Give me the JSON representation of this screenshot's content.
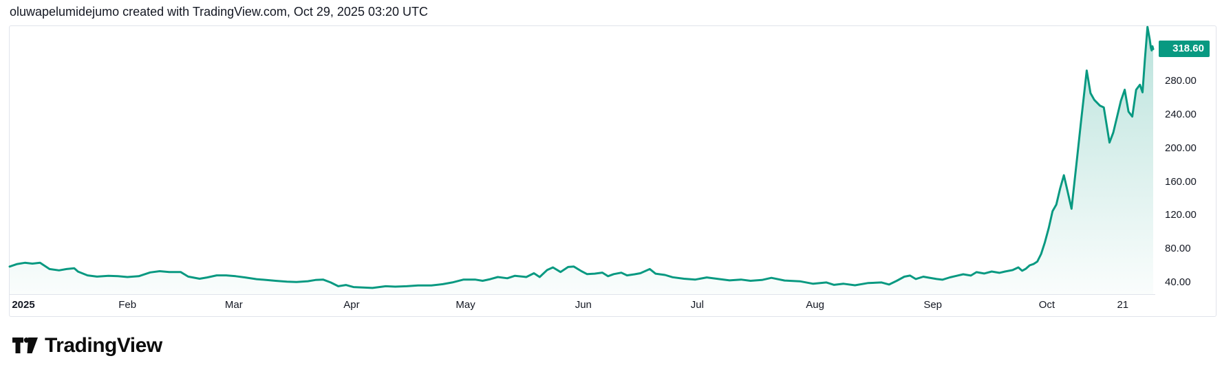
{
  "header": {
    "attribution": "oluwapelumidejumo created with TradingView.com, Oct 29, 2025 03:20 UTC"
  },
  "footer": {
    "logo_text": "TradingView"
  },
  "colors": {
    "accent": "#089981",
    "fill_top_opacity": 0.28,
    "fill_bottom_opacity": 0.02,
    "border": "#e0e3eb",
    "text": "#131722",
    "badge_text": "#ffffff",
    "background": "#ffffff"
  },
  "price_scale": {
    "last_price_label": "318.60",
    "labels": [
      {
        "text": "280.00",
        "value": 280
      },
      {
        "text": "240.00",
        "value": 240
      },
      {
        "text": "200.00",
        "value": 200
      },
      {
        "text": "160.00",
        "value": 160
      },
      {
        "text": "120.00",
        "value": 120
      },
      {
        "text": "80.00",
        "value": 80
      },
      {
        "text": "40.00",
        "value": 40
      }
    ]
  },
  "time_scale": {
    "labels": [
      {
        "text": "2025",
        "day": 0,
        "bold": true
      },
      {
        "text": "Feb",
        "day": 31
      },
      {
        "text": "Mar",
        "day": 59
      },
      {
        "text": "Apr",
        "day": 90
      },
      {
        "text": "May",
        "day": 120
      },
      {
        "text": "Jun",
        "day": 151
      },
      {
        "text": "Jul",
        "day": 181
      },
      {
        "text": "Aug",
        "day": 212
      },
      {
        "text": "Sep",
        "day": 243
      },
      {
        "text": "Oct",
        "day": 273
      },
      {
        "text": "21",
        "day": 293
      }
    ]
  },
  "chart_data": {
    "type": "area",
    "title": "",
    "xlabel": "",
    "ylabel": "",
    "x_unit": "days since 2025-01-01",
    "x_domain": [
      0,
      301
    ],
    "y_domain": [
      26,
      346
    ],
    "axis_ticks_y": [
      40,
      80,
      120,
      160,
      200,
      240,
      280
    ],
    "grid": false,
    "legend": false,
    "last_value": 318.6,
    "points": [
      [
        0,
        59
      ],
      [
        2,
        62
      ],
      [
        4,
        63.5
      ],
      [
        6,
        62.5
      ],
      [
        8,
        63.5
      ],
      [
        10.5,
        56
      ],
      [
        13,
        54.5
      ],
      [
        15,
        56
      ],
      [
        17,
        57
      ],
      [
        18,
        53
      ],
      [
        20.5,
        48.5
      ],
      [
        23,
        47
      ],
      [
        26,
        48
      ],
      [
        28.5,
        47.5
      ],
      [
        31,
        46.5
      ],
      [
        34,
        47.5
      ],
      [
        37,
        52
      ],
      [
        39.5,
        53.5
      ],
      [
        42,
        52.5
      ],
      [
        45,
        52.5
      ],
      [
        47,
        47
      ],
      [
        50,
        44.5
      ],
      [
        52,
        46
      ],
      [
        54.5,
        48.5
      ],
      [
        57,
        48.5
      ],
      [
        59.5,
        47.5
      ],
      [
        62,
        46
      ],
      [
        65,
        44
      ],
      [
        67.5,
        43
      ],
      [
        70,
        42
      ],
      [
        73,
        41
      ],
      [
        75.5,
        40.5
      ],
      [
        78.5,
        41.5
      ],
      [
        80.5,
        43
      ],
      [
        82.5,
        43.5
      ],
      [
        84.5,
        40
      ],
      [
        86.5,
        35.5
      ],
      [
        88.5,
        37
      ],
      [
        90.5,
        34.5
      ],
      [
        93,
        34
      ],
      [
        95.5,
        33.5
      ],
      [
        99,
        35.5
      ],
      [
        101.5,
        35
      ],
      [
        104.5,
        35.5
      ],
      [
        107.5,
        36.5
      ],
      [
        111,
        36.5
      ],
      [
        114,
        38
      ],
      [
        116.5,
        40
      ],
      [
        119.5,
        43.5
      ],
      [
        122.5,
        43.5
      ],
      [
        124.5,
        42
      ],
      [
        126.5,
        44
      ],
      [
        128.5,
        46.5
      ],
      [
        131,
        45
      ],
      [
        133,
        48
      ],
      [
        136,
        46.5
      ],
      [
        138,
        51
      ],
      [
        139.5,
        46.5
      ],
      [
        141.5,
        55
      ],
      [
        143,
        58
      ],
      [
        145,
        52.5
      ],
      [
        147,
        58.5
      ],
      [
        148.5,
        59
      ],
      [
        150.5,
        53.5
      ],
      [
        152,
        50
      ],
      [
        154,
        50.5
      ],
      [
        156,
        51.8
      ],
      [
        157.5,
        47.5
      ],
      [
        159,
        50
      ],
      [
        161,
        51.7
      ],
      [
        162.5,
        48.5
      ],
      [
        164.5,
        49.8
      ],
      [
        166,
        51
      ],
      [
        168.5,
        56
      ],
      [
        170,
        50.5
      ],
      [
        172.5,
        49
      ],
      [
        174.5,
        46.3
      ],
      [
        177.5,
        44.5
      ],
      [
        180.5,
        43.5
      ],
      [
        183.5,
        46
      ],
      [
        187,
        44
      ],
      [
        189.5,
        42.5
      ],
      [
        192.5,
        43.5
      ],
      [
        195,
        42
      ],
      [
        198,
        43
      ],
      [
        200.5,
        45.5
      ],
      [
        204,
        42.3
      ],
      [
        208,
        41.4
      ],
      [
        211.5,
        38.5
      ],
      [
        215,
        40
      ],
      [
        217,
        37.2
      ],
      [
        219.5,
        38.5
      ],
      [
        222.5,
        36.7
      ],
      [
        226,
        39.4
      ],
      [
        229.5,
        40
      ],
      [
        231.5,
        37.6
      ],
      [
        233.5,
        42
      ],
      [
        235.5,
        46.9
      ],
      [
        237,
        48.2
      ],
      [
        238.5,
        44.1
      ],
      [
        240.5,
        46.9
      ],
      [
        242,
        45.7
      ],
      [
        244,
        44.1
      ],
      [
        245.5,
        43.3
      ],
      [
        247.5,
        46.1
      ],
      [
        249.5,
        48.2
      ],
      [
        251,
        49.8
      ],
      [
        253,
        48.2
      ],
      [
        254.5,
        52.3
      ],
      [
        256.5,
        50.7
      ],
      [
        258.5,
        53.1
      ],
      [
        260.5,
        51.5
      ],
      [
        262,
        53.1
      ],
      [
        264,
        54.8
      ],
      [
        265.5,
        58
      ],
      [
        266.5,
        54
      ],
      [
        267.5,
        56.4
      ],
      [
        268.5,
        60.5
      ],
      [
        269.5,
        62
      ],
      [
        270.5,
        65
      ],
      [
        271.5,
        74
      ],
      [
        272.5,
        88
      ],
      [
        273.5,
        105
      ],
      [
        274.5,
        125
      ],
      [
        275.5,
        133
      ],
      [
        276.5,
        152
      ],
      [
        277.5,
        168
      ],
      [
        278.5,
        148
      ],
      [
        279.5,
        128
      ],
      [
        281,
        190
      ],
      [
        282,
        232
      ],
      [
        283.5,
        293
      ],
      [
        284.5,
        266
      ],
      [
        285.5,
        258
      ],
      [
        287,
        251
      ],
      [
        288,
        249
      ],
      [
        289.5,
        207
      ],
      [
        290.5,
        219
      ],
      [
        292.5,
        257
      ],
      [
        293.5,
        270
      ],
      [
        294.5,
        244
      ],
      [
        295.5,
        238
      ],
      [
        296.5,
        270
      ],
      [
        297.5,
        276
      ],
      [
        298.2,
        267
      ],
      [
        298.8,
        306
      ],
      [
        299.5,
        345
      ],
      [
        300.1,
        330
      ],
      [
        300.4,
        320
      ],
      [
        300.6,
        317
      ],
      [
        300.8,
        322
      ],
      [
        301,
        318.6
      ]
    ]
  }
}
